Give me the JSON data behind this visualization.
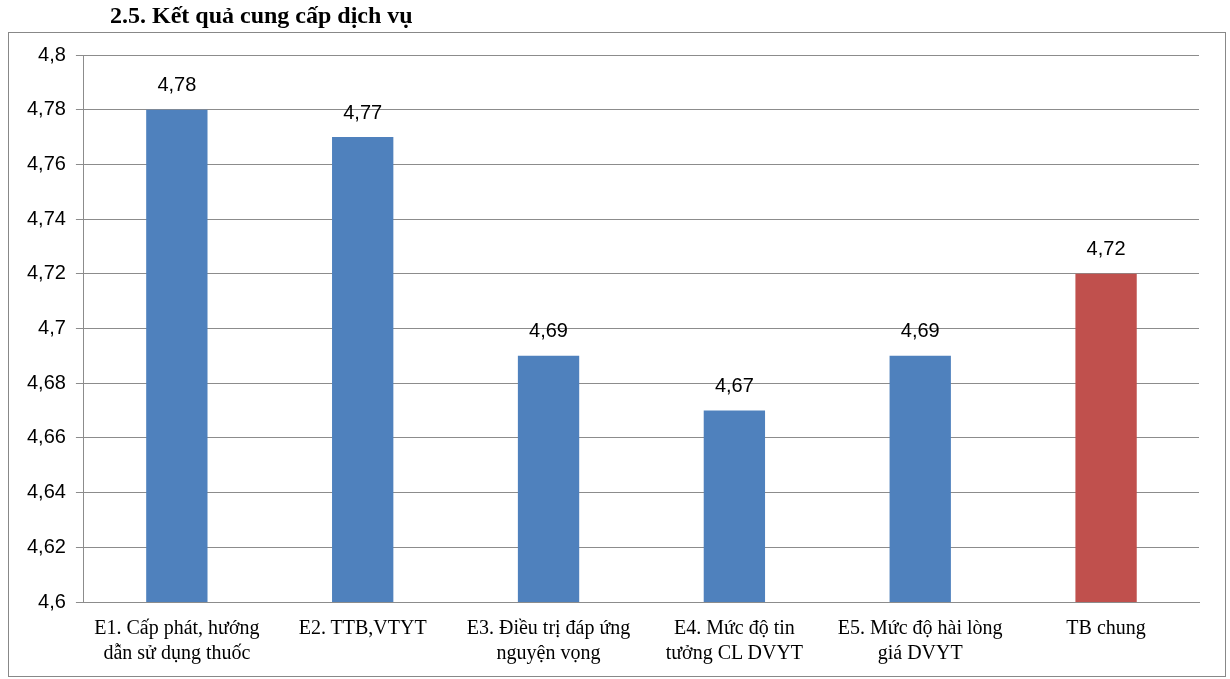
{
  "chart_data": {
    "type": "bar",
    "title": "2.5. Kết quả cung cấp dịch vụ",
    "categories": [
      "E1. Cấp phát, hướng dẫn sử dụng thuốc",
      "E2. TTB,VTYT",
      "E3. Điều trị đáp ứng nguyện vọng",
      "E4. Mức độ tin tưởng CL DVYT",
      "E5. Mức độ hài lòng giá DVYT",
      "TB chung"
    ],
    "values": [
      4.78,
      4.77,
      4.69,
      4.67,
      4.69,
      4.72
    ],
    "colors": [
      "#4f81bd",
      "#4f81bd",
      "#4f81bd",
      "#4f81bd",
      "#4f81bd",
      "#c0504d"
    ],
    "value_labels": [
      "4,78",
      "4,77",
      "4,69",
      "4,67",
      "4,69",
      "4,72"
    ],
    "ylim": [
      4.6,
      4.8
    ],
    "yticks": [
      {
        "value": 4.6,
        "label": "4,6"
      },
      {
        "value": 4.62,
        "label": "4,62"
      },
      {
        "value": 4.64,
        "label": "4,64"
      },
      {
        "value": 4.66,
        "label": "4,66"
      },
      {
        "value": 4.68,
        "label": "4,68"
      },
      {
        "value": 4.7,
        "label": "4,7"
      },
      {
        "value": 4.72,
        "label": "4,72"
      },
      {
        "value": 4.74,
        "label": "4,74"
      },
      {
        "value": 4.76,
        "label": "4,76"
      },
      {
        "value": 4.78,
        "label": "4,78"
      },
      {
        "value": 4.8,
        "label": "4,8"
      }
    ],
    "grid": "y",
    "legend": false
  }
}
